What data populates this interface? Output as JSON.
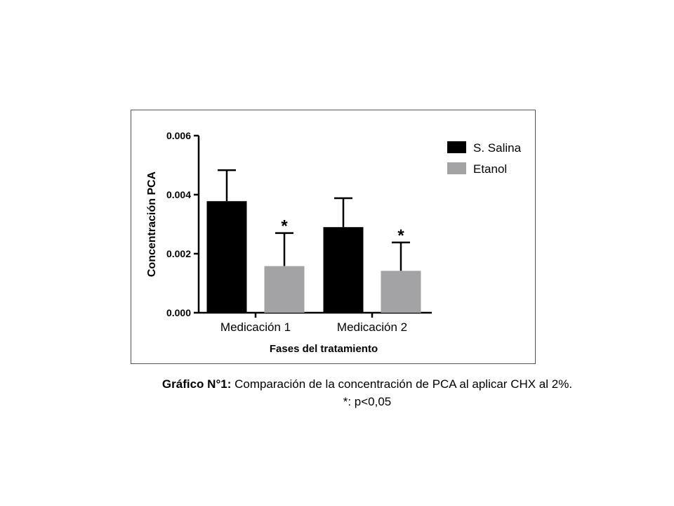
{
  "chart_data": {
    "type": "bar",
    "categories": [
      "Medicación 1",
      "Medicación 2"
    ],
    "series": [
      {
        "name": "S. Salina",
        "color": "#000000",
        "values": [
          0.00378,
          0.0029
        ],
        "error": [
          0.00105,
          0.00098
        ]
      },
      {
        "name": "Etanol",
        "color": "#a3a3a5",
        "values": [
          0.00158,
          0.00142
        ],
        "error": [
          0.00112,
          0.00096
        ]
      }
    ],
    "significance": [
      {
        "category": "Medicación 1",
        "series": "Etanol",
        "label": "*"
      },
      {
        "category": "Medicación 2",
        "series": "Etanol",
        "label": "*"
      }
    ],
    "xlabel": "Fases del tratamiento",
    "ylabel": "Concentración PCA",
    "ylim": [
      0,
      0.006
    ],
    "yticks": [
      "0.000",
      "0.002",
      "0.004",
      "0.006"
    ],
    "ytick_values": [
      0,
      0.002,
      0.004,
      0.006
    ],
    "legend_position": "top-right",
    "grid": false
  },
  "caption": {
    "line1_bold": "Gráfico N°1:",
    "line1_rest": " Comparación de la concentración de PCA al aplicar CHX al 2%.",
    "line2": "*: p<0,05"
  }
}
